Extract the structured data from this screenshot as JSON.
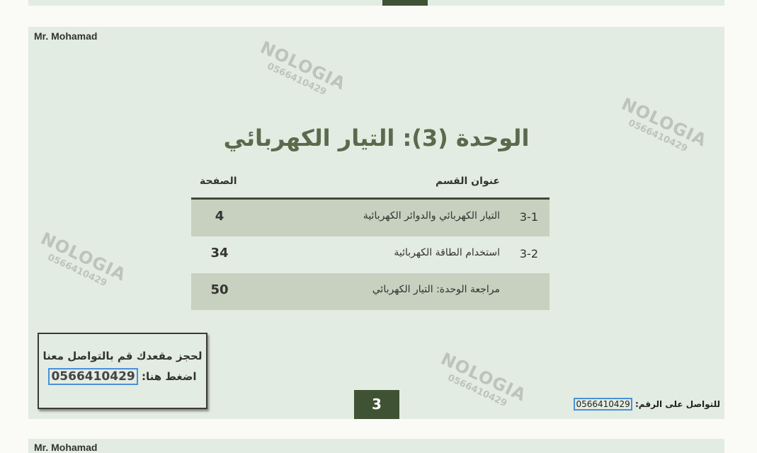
{
  "author": "Mr. Mohamad",
  "title": "الوحدة (3): التيار الكهربائي",
  "table": {
    "headers": {
      "section": "عنوان القسم",
      "page": "الصفحة"
    },
    "rows": [
      {
        "num": "3-1",
        "title": "التيار الكهربائي والدوائر الكهربائية",
        "page": "4"
      },
      {
        "num": "3-2",
        "title": "استخدام الطاقة الكهربائية",
        "page": "34"
      },
      {
        "num": "",
        "title": "مراجعة الوحدة: التيار الكهربائي",
        "page": "50"
      }
    ]
  },
  "booking": {
    "line1": "لحجز مقعدك قم بالتواصل معنا",
    "line2": "اضغط هنا:",
    "phone": "0566410429"
  },
  "page_number": "3",
  "contact": {
    "label": "للتواصل على الرقم:",
    "phone": "0566410429"
  },
  "watermark": {
    "brand": "NOLOGIA",
    "phone": "0566410429"
  },
  "colors": {
    "sheet": "#e3ece2",
    "accent": "#3f5233",
    "row_shade": "#c8d0bf",
    "title": "#5b6a4d"
  }
}
